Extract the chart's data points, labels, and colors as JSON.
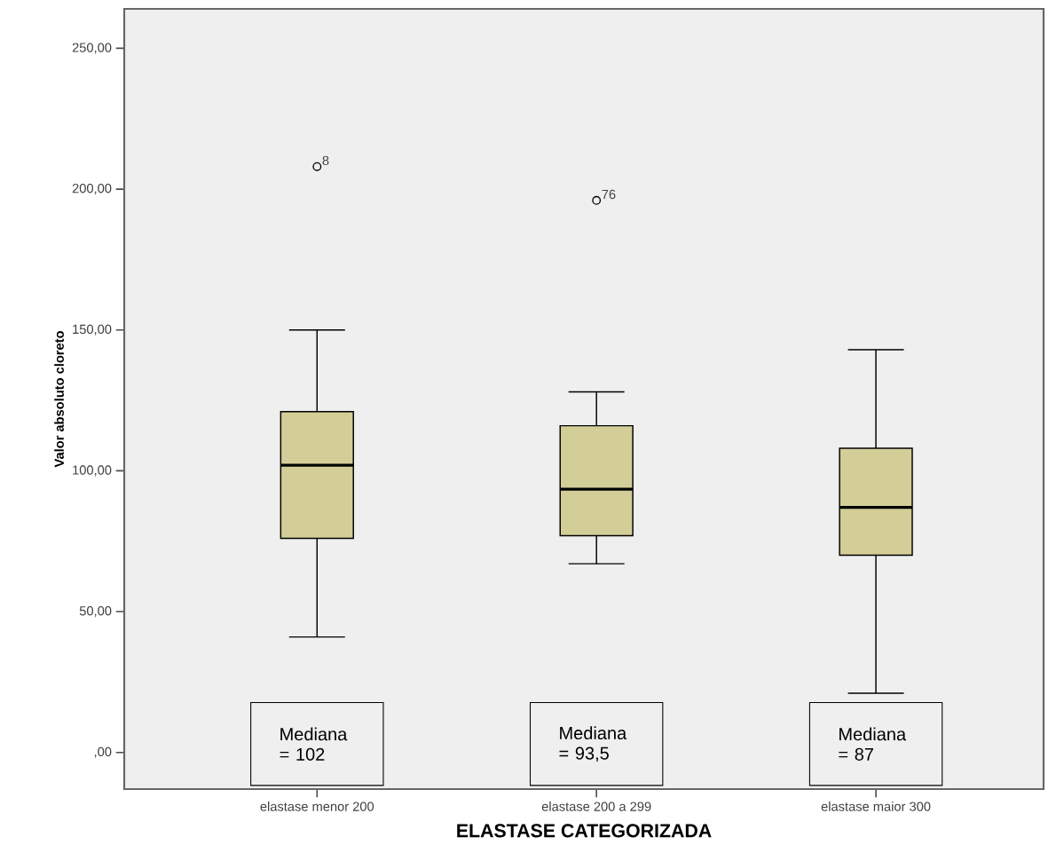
{
  "chart_data": {
    "type": "box",
    "xlabel": "ELASTASE CATEGORIZADA",
    "ylabel": "Valor absoluto cloreto",
    "categories": [
      "elastase menor 200",
      "elastase 200 a 299",
      "elastase maior 300"
    ],
    "color": "#d3ce98",
    "boxes": [
      {
        "low": 41,
        "q1": 76,
        "median": 102,
        "q3": 121,
        "high": 150,
        "outliers": [
          208
        ]
      },
      {
        "low": 67,
        "q1": 77,
        "median": 93.5,
        "q3": 116,
        "high": 128,
        "outliers": [
          196
        ]
      },
      {
        "low": 21,
        "q1": 70,
        "median": 87,
        "q3": 108,
        "high": 143
      }
    ],
    "ylim": [
      -13,
      264
    ],
    "yticks": [
      {
        "value": 0,
        "label": ",00"
      },
      {
        "value": 50,
        "label": "50,00"
      },
      {
        "value": 100,
        "label": "100,00"
      },
      {
        "value": 150,
        "label": "150,00"
      },
      {
        "value": 200,
        "label": "200,00"
      },
      {
        "value": 250,
        "label": "250,00"
      }
    ],
    "annotations": [
      "Mediana = 102",
      "Mediana = 93,5",
      "Mediana = 87",
      "8",
      "76"
    ]
  }
}
